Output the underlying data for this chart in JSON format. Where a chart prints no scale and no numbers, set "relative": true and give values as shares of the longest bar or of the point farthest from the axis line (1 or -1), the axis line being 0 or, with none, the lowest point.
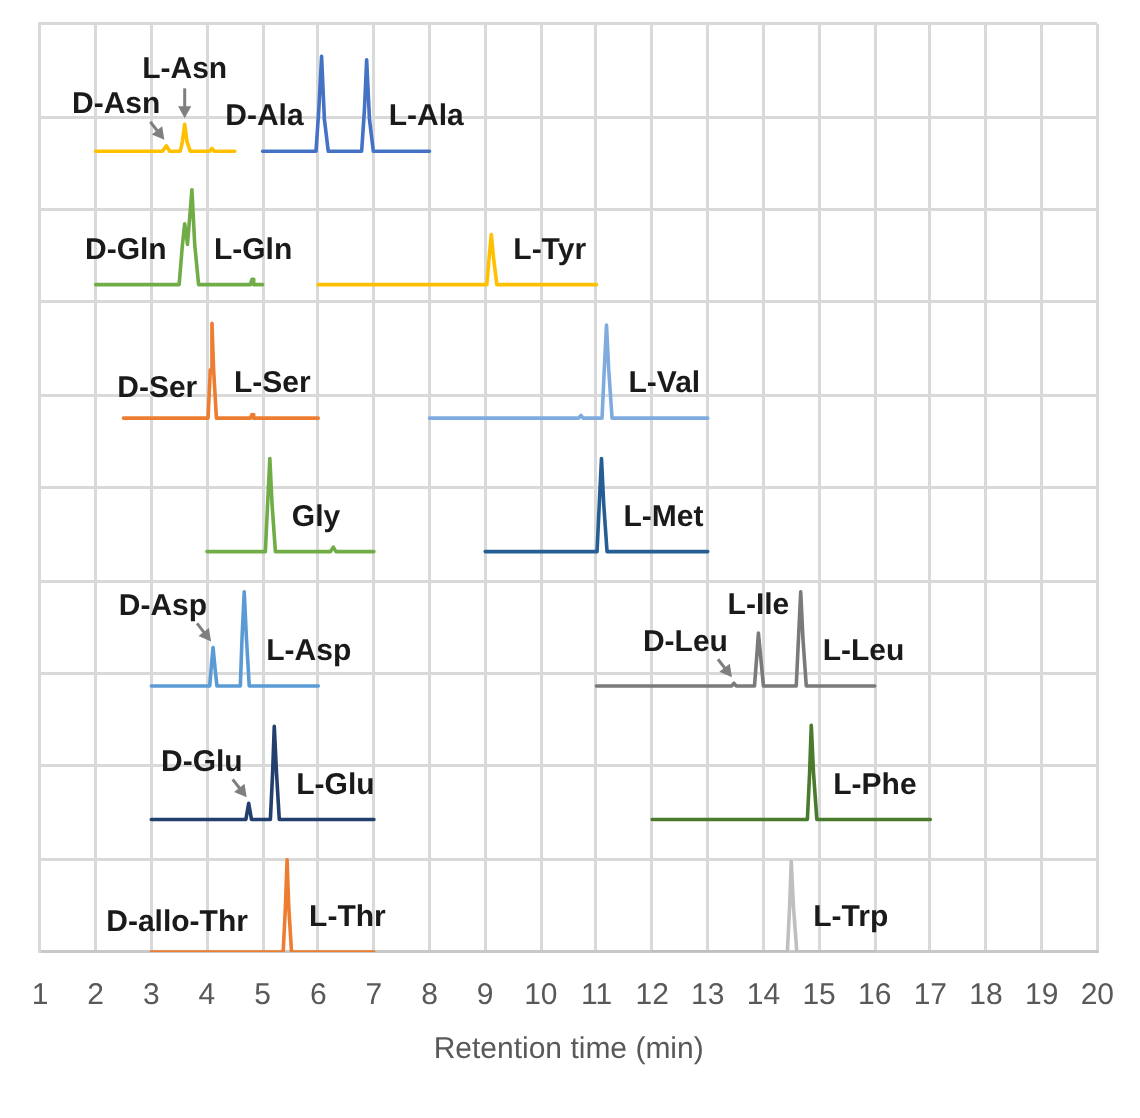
{
  "chart_data": {
    "type": "line",
    "xlabel": "Retention time (min)",
    "xlim": [
      1,
      20
    ],
    "xticks": [
      1,
      2,
      3,
      4,
      5,
      6,
      7,
      8,
      9,
      10,
      11,
      12,
      13,
      14,
      15,
      16,
      17,
      18,
      19,
      20
    ],
    "relative": true,
    "grid": true,
    "marker": "none",
    "series": [
      {
        "color": "#ffc000",
        "x": [
          2.0,
          3.2,
          3.27,
          3.33,
          3.52,
          3.56,
          3.6,
          3.64,
          3.7,
          4.05,
          4.09,
          4.13,
          4.5
        ],
        "values": [
          0.894,
          0.894,
          0.9,
          0.894,
          0.894,
          0.905,
          0.924,
          0.905,
          0.894,
          0.894,
          0.897,
          0.894,
          0.894
        ]
      },
      {
        "color": "#4472c4",
        "x": [
          5.0,
          5.96,
          6.01,
          6.06,
          6.11,
          6.18,
          6.78,
          6.83,
          6.87,
          6.92,
          6.99,
          8.0
        ],
        "values": [
          0.894,
          0.894,
          0.94,
          1.0,
          0.93,
          0.894,
          0.894,
          0.94,
          0.996,
          0.93,
          0.894,
          0.894
        ]
      },
      {
        "color": "#70ad47",
        "x": [
          2.0,
          3.5,
          3.56,
          3.6,
          3.65,
          3.69,
          3.73,
          3.78,
          3.85,
          4.78,
          4.81,
          4.84,
          5.0
        ],
        "values": [
          0.745,
          0.745,
          0.79,
          0.813,
          0.79,
          0.82,
          0.851,
          0.79,
          0.745,
          0.745,
          0.751,
          0.745,
          0.745
        ]
      },
      {
        "color": "#ffc000",
        "x": [
          6.0,
          9.03,
          9.07,
          9.11,
          9.15,
          9.21,
          11.0
        ],
        "values": [
          0.745,
          0.745,
          0.775,
          0.801,
          0.775,
          0.745,
          0.745
        ]
      },
      {
        "color": "#ed7d31",
        "x": [
          2.5,
          4.02,
          4.06,
          4.09,
          4.12,
          4.17,
          4.78,
          4.81,
          4.84,
          6.0
        ],
        "values": [
          0.596,
          0.596,
          0.65,
          0.702,
          0.65,
          0.596,
          0.596,
          0.6,
          0.596,
          0.596
        ]
      },
      {
        "color": "#7fabdf",
        "x": [
          8.0,
          10.68,
          10.72,
          10.76,
          11.1,
          11.14,
          11.18,
          11.22,
          11.28,
          13.0
        ],
        "values": [
          0.596,
          0.596,
          0.599,
          0.596,
          0.596,
          0.65,
          0.7,
          0.65,
          0.596,
          0.596
        ]
      },
      {
        "color": "#70ad47",
        "x": [
          4.0,
          5.05,
          5.09,
          5.13,
          5.17,
          5.23,
          6.22,
          6.27,
          6.32,
          7.0
        ],
        "values": [
          0.447,
          0.447,
          0.5,
          0.551,
          0.5,
          0.447,
          0.447,
          0.452,
          0.447,
          0.447
        ]
      },
      {
        "color": "#255e95",
        "x": [
          9.0,
          11.01,
          11.05,
          11.09,
          11.13,
          11.19,
          13.0
        ],
        "values": [
          0.447,
          0.447,
          0.5,
          0.551,
          0.5,
          0.447,
          0.447
        ]
      },
      {
        "color": "#5b9bd5",
        "x": [
          3.0,
          4.05,
          4.08,
          4.11,
          4.14,
          4.18,
          4.6,
          4.63,
          4.67,
          4.71,
          4.76,
          6.0
        ],
        "values": [
          0.297,
          0.297,
          0.32,
          0.34,
          0.32,
          0.297,
          0.297,
          0.35,
          0.402,
          0.35,
          0.297,
          0.297
        ]
      },
      {
        "color": "#7a7a7a",
        "x": [
          11.0,
          13.43,
          13.47,
          13.51,
          13.84,
          13.88,
          13.91,
          13.95,
          14.0,
          14.59,
          14.63,
          14.67,
          14.71,
          14.77,
          16.0
        ],
        "values": [
          0.297,
          0.297,
          0.3,
          0.297,
          0.297,
          0.33,
          0.356,
          0.33,
          0.297,
          0.297,
          0.35,
          0.402,
          0.35,
          0.297,
          0.297
        ]
      },
      {
        "color": "#223f6e",
        "x": [
          3.0,
          4.7,
          4.75,
          4.8,
          5.14,
          5.18,
          5.21,
          5.25,
          5.3,
          7.0
        ],
        "values": [
          0.148,
          0.148,
          0.166,
          0.148,
          0.148,
          0.2,
          0.252,
          0.2,
          0.148,
          0.148
        ]
      },
      {
        "color": "#4a7a2c",
        "x": [
          12.0,
          14.79,
          14.83,
          14.86,
          14.9,
          14.96,
          17.0
        ],
        "values": [
          0.148,
          0.148,
          0.2,
          0.253,
          0.2,
          0.148,
          0.148
        ]
      },
      {
        "color": "#ed7d31",
        "x": [
          3.0,
          5.37,
          5.41,
          5.44,
          5.47,
          5.52,
          7.0
        ],
        "values": [
          0,
          0,
          0.05,
          0.103,
          0.05,
          0,
          0
        ]
      },
      {
        "color": "#bfbfbf",
        "x": [
          12.0,
          14.43,
          14.47,
          14.5,
          14.54,
          14.6,
          16.0
        ],
        "values": [
          0,
          0,
          0.05,
          0.101,
          0.05,
          0,
          0
        ]
      }
    ],
    "annotations": [
      {
        "text": "D-Asn",
        "x": 3.27,
        "y": 0.9
      },
      {
        "text": "L-Asn",
        "x": 3.6,
        "y": 0.924
      },
      {
        "text": "D-Ala",
        "x": 6.06,
        "y": 1.0
      },
      {
        "text": "L-Ala",
        "x": 6.87,
        "y": 0.996
      },
      {
        "text": "D-Gln",
        "x": 3.6,
        "y": 0.813
      },
      {
        "text": "L-Gln",
        "x": 3.73,
        "y": 0.851
      },
      {
        "text": "L-Tyr",
        "x": 9.11,
        "y": 0.801
      },
      {
        "text": "D-Ser",
        "x": 3.79,
        "y": 0.596
      },
      {
        "text": "L-Ser",
        "x": 4.09,
        "y": 0.702
      },
      {
        "text": "L-Val",
        "x": 11.18,
        "y": 0.7
      },
      {
        "text": "Gly",
        "x": 5.13,
        "y": 0.551
      },
      {
        "text": "L-Met",
        "x": 11.09,
        "y": 0.551
      },
      {
        "text": "D-Asp",
        "x": 4.11,
        "y": 0.34
      },
      {
        "text": "L-Asp",
        "x": 4.67,
        "y": 0.402
      },
      {
        "text": "D-Leu",
        "x": 13.47,
        "y": 0.3
      },
      {
        "text": "L-Ile",
        "x": 13.91,
        "y": 0.356
      },
      {
        "text": "L-Leu",
        "x": 14.67,
        "y": 0.402
      },
      {
        "text": "D-Glu",
        "x": 4.75,
        "y": 0.166
      },
      {
        "text": "L-Glu",
        "x": 5.21,
        "y": 0.252
      },
      {
        "text": "L-Phe",
        "x": 14.86,
        "y": 0.253
      },
      {
        "text": "D-allo-Thr",
        "x": 4.7,
        "y": 0
      },
      {
        "text": "L-Thr",
        "x": 5.44,
        "y": 0.103
      },
      {
        "text": "L-Trp",
        "x": 14.5,
        "y": 0.101
      }
    ]
  }
}
